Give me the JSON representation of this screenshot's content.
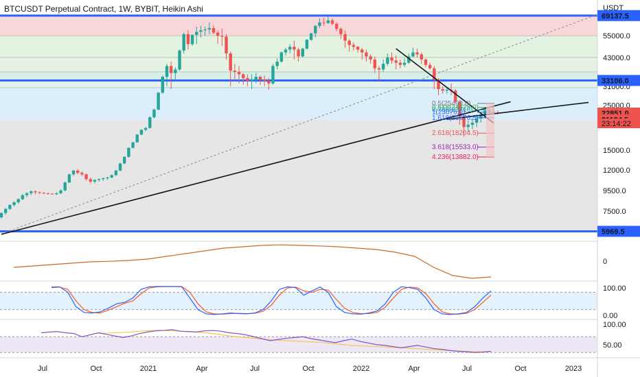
{
  "header": {
    "title": "BTCUSDT Perpetual Contract, 1W, BYBIT, Heikin Ashi"
  },
  "axis": {
    "currency": "USDT"
  },
  "colors": {
    "up": "#26a69a",
    "down": "#ef5350",
    "hline": "#2962ff",
    "trend": "#131722",
    "rsi": "#7e57c2",
    "rsi_ma": "#f5c45a",
    "stoch_k": "#2962ff",
    "stoch_d": "#ff5722",
    "osc": "#c66a2c"
  },
  "chart_data": [
    {
      "type": "line",
      "name": "price",
      "ylog": true,
      "ylim": [
        5500,
        80000
      ],
      "y_ticks": [
        "55000.0",
        "43000.0",
        "31000.0",
        "25000.0",
        "20000.0",
        "15000.0",
        "12000.0",
        "9500.0",
        "7500.0"
      ],
      "y_tick_values": [
        55000,
        43000,
        31000,
        25000,
        20000,
        15000,
        12000,
        9500,
        7500
      ],
      "x_ticks": [
        "Jul",
        "Oct",
        "2021",
        "Apr",
        "Jul",
        "Oct",
        "2022",
        "Apr",
        "Jul",
        "Oct",
        "2023"
      ],
      "x_tick_positions": [
        62,
        140,
        216,
        294,
        371,
        449,
        526,
        603,
        680,
        758,
        835
      ],
      "price_labels": [
        {
          "value": 69137.5,
          "text": "69137.5",
          "color": "#2962ff"
        },
        {
          "value": 33106.0,
          "text": "33106.0",
          "color": "#2962ff"
        },
        {
          "value": 22851.0,
          "text": "22851.0",
          "color": "#ef5350"
        },
        {
          "value": 21184.5,
          "text": "21184.5",
          "color": "#ef5350"
        },
        {
          "value": 5969.5,
          "text": "5969.5",
          "color": "#2962ff"
        }
      ],
      "countdown": "23:14:22",
      "horizontal_lines": [
        69137.5,
        33106.0,
        5969.5
      ],
      "fib_labels": [
        {
          "text": "0.5(25498.0)",
          "value": 25498,
          "color": "#787b86"
        },
        {
          "text": "0.618(24425.0)",
          "value": 24425,
          "color": "#4caf50"
        },
        {
          "text": "0.786(23716)",
          "value": 23716,
          "color": "#26a69a"
        },
        {
          "text": "1(23076.0)",
          "value": 23076,
          "color": "#2962ff"
        },
        {
          "text": "1.618(21676.5)",
          "value": 21676.5,
          "color": "#2962ff"
        },
        {
          "text": "2.618(18204.5)",
          "value": 18204.5,
          "color": "#ef5350"
        },
        {
          "text": "3.618(15533.0)",
          "value": 15533,
          "color": "#9c27b0"
        },
        {
          "text": "4.236(13882.0)",
          "value": 13882,
          "color": "#e91e63"
        }
      ],
      "candles": [
        [
          7000,
          7400,
          6900,
          7350
        ],
        [
          7350,
          7800,
          7200,
          7700
        ],
        [
          7700,
          8100,
          7600,
          8050
        ],
        [
          8050,
          8400,
          7900,
          8300
        ],
        [
          8300,
          8700,
          8200,
          8600
        ],
        [
          8600,
          9100,
          8500,
          9000
        ],
        [
          9000,
          9300,
          8800,
          9200
        ],
        [
          9200,
          9500,
          9000,
          9400
        ],
        [
          9400,
          9500,
          9100,
          9300
        ],
        [
          9300,
          9400,
          9100,
          9250
        ],
        [
          9250,
          9300,
          9100,
          9200
        ],
        [
          9200,
          9250,
          9050,
          9150
        ],
        [
          9150,
          9200,
          9050,
          9100
        ],
        [
          9100,
          9300,
          9000,
          9200
        ],
        [
          9200,
          9600,
          9100,
          9500
        ],
        [
          9500,
          10500,
          9400,
          10400
        ],
        [
          10400,
          11500,
          10300,
          11400
        ],
        [
          11400,
          12000,
          11200,
          11900
        ],
        [
          11900,
          12100,
          11400,
          11600
        ],
        [
          11600,
          11800,
          11200,
          11400
        ],
        [
          11400,
          11500,
          10600,
          10800
        ],
        [
          10800,
          11000,
          10300,
          10500
        ],
        [
          10500,
          10800,
          10300,
          10700
        ],
        [
          10700,
          10900,
          10500,
          10800
        ],
        [
          10800,
          11000,
          10600,
          10900
        ],
        [
          10900,
          11100,
          10700,
          11000
        ],
        [
          11000,
          11400,
          10900,
          11300
        ],
        [
          11300,
          12000,
          11200,
          11900
        ],
        [
          11900,
          13000,
          11800,
          12900
        ],
        [
          12900,
          14000,
          12800,
          13900
        ],
        [
          13900,
          15500,
          13800,
          15400
        ],
        [
          15400,
          16500,
          15300,
          16400
        ],
        [
          16400,
          18000,
          16300,
          17900
        ],
        [
          17900,
          19000,
          17800,
          18900
        ],
        [
          18900,
          19500,
          18600,
          19300
        ],
        [
          19300,
          22000,
          19200,
          21800
        ],
        [
          21800,
          24000,
          21500,
          23800
        ],
        [
          23800,
          29000,
          23600,
          28800
        ],
        [
          28800,
          35000,
          28500,
          34500
        ],
        [
          34500,
          40000,
          31000,
          39000
        ],
        [
          39000,
          41000,
          30000,
          36000
        ],
        [
          36000,
          38500,
          33000,
          37500
        ],
        [
          37500,
          47000,
          37000,
          46500
        ],
        [
          46500,
          57000,
          45000,
          56000
        ],
        [
          56000,
          58500,
          47000,
          50000
        ],
        [
          50000,
          56000,
          49000,
          55500
        ],
        [
          55500,
          61000,
          50000,
          57500
        ],
        [
          57500,
          61500,
          54000,
          58500
        ],
        [
          58500,
          61000,
          55000,
          59000
        ],
        [
          59000,
          64000,
          56000,
          60000
        ],
        [
          60000,
          62000,
          56000,
          57000
        ],
        [
          57000,
          58500,
          50000,
          55000
        ],
        [
          55000,
          59500,
          49000,
          54500
        ],
        [
          54500,
          56000,
          42000,
          45000
        ],
        [
          45000,
          46000,
          31000,
          37000
        ],
        [
          37000,
          40000,
          33000,
          36500
        ],
        [
          36500,
          39000,
          32000,
          35500
        ],
        [
          35500,
          36000,
          31500,
          34000
        ],
        [
          34000,
          35500,
          31000,
          33000
        ],
        [
          33000,
          35500,
          30000,
          33500
        ],
        [
          33500,
          36000,
          32000,
          34500
        ],
        [
          34500,
          35000,
          31500,
          33500
        ],
        [
          33500,
          35000,
          31000,
          33000
        ],
        [
          33000,
          34000,
          29800,
          32000
        ],
        [
          32000,
          40000,
          31500,
          39000
        ],
        [
          39000,
          42500,
          37500,
          41000
        ],
        [
          41000,
          46000,
          40500,
          45500
        ],
        [
          45500,
          48000,
          44000,
          47000
        ],
        [
          47000,
          50000,
          45000,
          48500
        ],
        [
          48500,
          52000,
          42000,
          47000
        ],
        [
          47000,
          48000,
          41000,
          43500
        ],
        [
          43500,
          48000,
          43000,
          47500
        ],
        [
          47500,
          53000,
          47000,
          52500
        ],
        [
          52500,
          57000,
          52000,
          56500
        ],
        [
          56500,
          62000,
          54000,
          61500
        ],
        [
          61500,
          67000,
          60000,
          64000
        ],
        [
          64000,
          67500,
          61500,
          63500
        ],
        [
          63500,
          69000,
          63000,
          65500
        ],
        [
          65500,
          67000,
          62000,
          63000
        ],
        [
          63000,
          64000,
          58000,
          59500
        ],
        [
          59500,
          60500,
          53000,
          56000
        ],
        [
          56000,
          58500,
          48000,
          52000
        ],
        [
          52000,
          53000,
          46000,
          49500
        ],
        [
          49500,
          51000,
          46500,
          48500
        ],
        [
          48500,
          49000,
          45500,
          47000
        ],
        [
          47000,
          48000,
          42000,
          45500
        ],
        [
          45500,
          47000,
          41000,
          43500
        ],
        [
          43500,
          44500,
          40000,
          42000
        ],
        [
          42000,
          43500,
          36000,
          38000
        ],
        [
          38000,
          39000,
          33000,
          37500
        ],
        [
          37500,
          42000,
          36500,
          40000
        ],
        [
          40000,
          45000,
          39000,
          43000
        ],
        [
          43000,
          45500,
          40000,
          41500
        ],
        [
          41500,
          44000,
          37500,
          40500
        ],
        [
          40500,
          42000,
          38000,
          39500
        ],
        [
          39500,
          42500,
          38500,
          40500
        ],
        [
          40500,
          45000,
          40000,
          43500
        ],
        [
          43500,
          48000,
          43000,
          45500
        ],
        [
          45500,
          47500,
          43000,
          44500
        ],
        [
          44500,
          45500,
          40000,
          42000
        ],
        [
          42000,
          42500,
          38500,
          39500
        ],
        [
          39500,
          40500,
          37500,
          38000
        ],
        [
          38000,
          39000,
          30000,
          33500
        ],
        [
          33500,
          34000,
          28000,
          30000
        ],
        [
          30000,
          31000,
          28500,
          29500
        ],
        [
          29500,
          30500,
          28500,
          29800
        ],
        [
          29800,
          32000,
          28000,
          29500
        ],
        [
          29500,
          30000,
          25500,
          26000
        ],
        [
          26000,
          26500,
          20000,
          22000
        ],
        [
          22000,
          22500,
          17500,
          19500
        ],
        [
          19500,
          21000,
          18500,
          20000
        ],
        [
          20000,
          21500,
          19000,
          20500
        ],
        [
          20500,
          22500,
          19500,
          21500
        ],
        [
          21500,
          23000,
          20500,
          22500
        ],
        [
          22500,
          24500,
          21500,
          23500
        ],
        [
          23500,
          24500,
          22500,
          23200
        ],
        [
          23200,
          25000,
          22800,
          23000
        ],
        [
          23000,
          23500,
          22500,
          22850
        ]
      ],
      "trend_lines": [
        {
          "from": [
            0,
            5770
          ],
          "to": [
            103,
            21000
          ],
          "extend_to": 120
        },
        {
          "from": [
            93,
            47500
          ],
          "to": [
            113,
            22800
          ],
          "extend_to": 116
        }
      ],
      "dotted_trend": {
        "from": [
          0,
          5800
        ],
        "to": [
          120,
          70000
        ]
      }
    },
    {
      "type": "line",
      "name": "oscillator",
      "y_ticks": [
        "0"
      ],
      "values_from": 20,
      "values": [
        [
          0,
          -0.2
        ],
        [
          10,
          -0.15
        ],
        [
          20,
          -0.1
        ],
        [
          30,
          -0.05
        ],
        [
          40,
          0
        ],
        [
          50,
          0.02
        ],
        [
          60,
          0.05
        ],
        [
          70,
          0.1
        ],
        [
          80,
          0.2
        ],
        [
          90,
          0.3
        ],
        [
          100,
          0.4
        ],
        [
          110,
          0.5
        ],
        [
          120,
          0.55
        ],
        [
          130,
          0.6
        ],
        [
          140,
          0.62
        ],
        [
          150,
          0.6
        ],
        [
          160,
          0.58
        ],
        [
          170,
          0.55
        ],
        [
          180,
          0.5
        ],
        [
          190,
          0.45
        ],
        [
          200,
          0.35
        ],
        [
          210,
          0.2
        ],
        [
          220,
          -0.2
        ],
        [
          230,
          -0.5
        ],
        [
          240,
          -0.6
        ],
        [
          250,
          -0.55
        ]
      ]
    },
    {
      "type": "line",
      "name": "stoch",
      "y_ticks": [
        "100.00",
        "0.00"
      ],
      "ylim": [
        0,
        100
      ],
      "k": [
        98,
        99,
        80,
        30,
        10,
        8,
        12,
        25,
        40,
        45,
        60,
        90,
        99,
        100,
        100,
        100,
        99,
        60,
        20,
        5,
        3,
        5,
        8,
        6,
        5,
        8,
        20,
        50,
        90,
        99,
        96,
        70,
        85,
        98,
        80,
        30,
        10,
        5,
        4,
        8,
        15,
        40,
        80,
        99,
        96,
        90,
        60,
        20,
        5,
        3,
        5,
        10,
        30,
        60,
        85
      ],
      "d": [
        96,
        98,
        90,
        50,
        20,
        10,
        8,
        18,
        30,
        42,
        50,
        75,
        95,
        99,
        100,
        100,
        100,
        80,
        40,
        12,
        5,
        4,
        6,
        7,
        6,
        7,
        14,
        35,
        70,
        95,
        98,
        85,
        80,
        90,
        88,
        55,
        25,
        10,
        6,
        6,
        10,
        28,
        60,
        90,
        98,
        95,
        75,
        40,
        12,
        5,
        4,
        7,
        20,
        45,
        70
      ]
    },
    {
      "type": "line",
      "name": "rsi",
      "y_ticks": [
        "100.00",
        "50.00"
      ],
      "ylim": [
        20,
        100
      ],
      "rsi": [
        80,
        82,
        83,
        80,
        78,
        70,
        75,
        80,
        76,
        72,
        68,
        72,
        78,
        82,
        85,
        86,
        88,
        84,
        83,
        82,
        85,
        86,
        84,
        80,
        78,
        75,
        70,
        65,
        60,
        63,
        66,
        68,
        70,
        65,
        62,
        58,
        55,
        60,
        64,
        58,
        54,
        50,
        48,
        45,
        42,
        45,
        48,
        44,
        40,
        38,
        35,
        33,
        32,
        30,
        31,
        33
      ],
      "rsi_ma": [
        null,
        null,
        null,
        null,
        null,
        null,
        null,
        78,
        79,
        80,
        81,
        82,
        84,
        85,
        86,
        86,
        85,
        84,
        83,
        82,
        80,
        78,
        75,
        72,
        70,
        68,
        66,
        64,
        62,
        61,
        60,
        59,
        58,
        57,
        56,
        54,
        52,
        50,
        48,
        47,
        46,
        45,
        44,
        43,
        42,
        41,
        40,
        38,
        37,
        36,
        35,
        34,
        33,
        32,
        32,
        33
      ]
    }
  ]
}
